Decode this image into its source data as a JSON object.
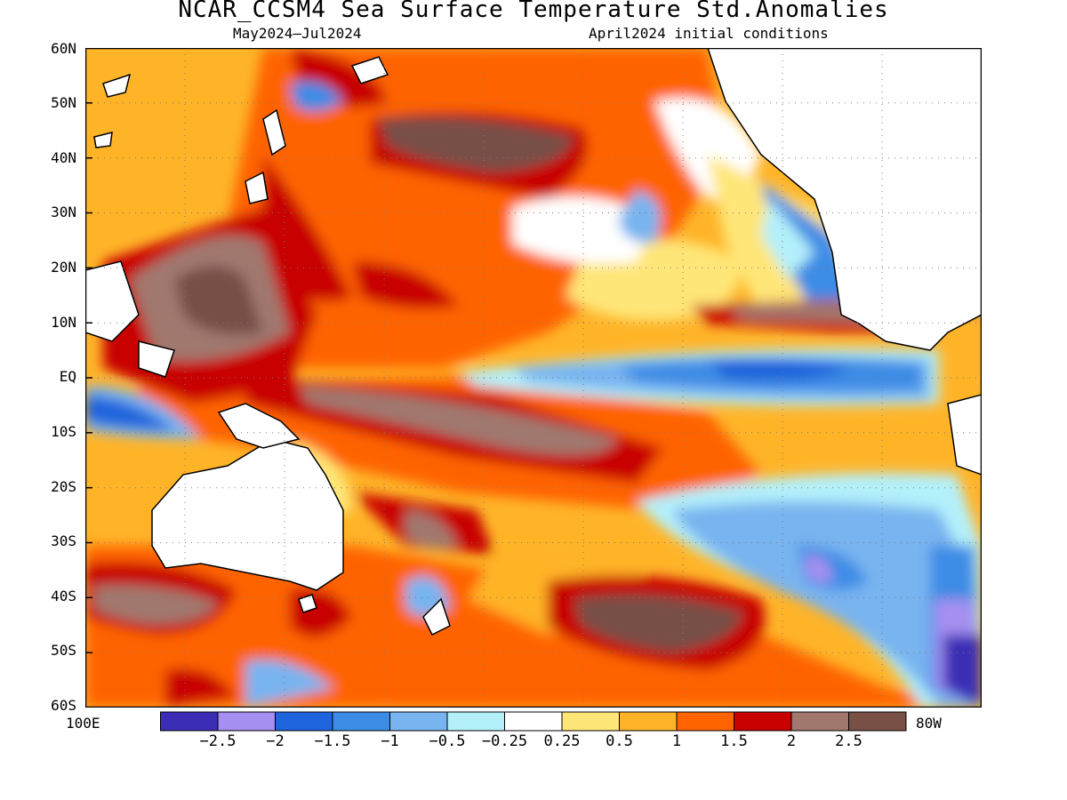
{
  "title": "NCAR_CCSM4 Sea Surface Temperature Std.Anomalies",
  "subtitle_left": "May2024–Jul2024",
  "subtitle_right": "April2024 initial conditions",
  "axes": {
    "lat_labels": [
      "60N",
      "50N",
      "40N",
      "30N",
      "20N",
      "10N",
      "EQ",
      "10S",
      "20S",
      "30S",
      "40S",
      "50S",
      "60S"
    ],
    "lon_left": "100E",
    "lon_right": "80W",
    "grid": "dotted"
  },
  "colorbar": {
    "labels": [
      "−2.5",
      "−2",
      "−1.5",
      "−1",
      "−0.5",
      "−0.25",
      "0.25",
      "0.5",
      "1",
      "1.5",
      "2",
      "2.5"
    ],
    "colors": [
      "#3b2db5",
      "#a58ff0",
      "#1e64dc",
      "#3c8ce6",
      "#78b4f0",
      "#b4f0fa",
      "#ffffff",
      "#ffe678",
      "#ffb428",
      "#ff6400",
      "#c80000",
      "#a0786e",
      "#785046"
    ]
  },
  "colors": {
    "background_sea": "#ffb428",
    "land": "#ffffff",
    "coastline": "#000000"
  }
}
